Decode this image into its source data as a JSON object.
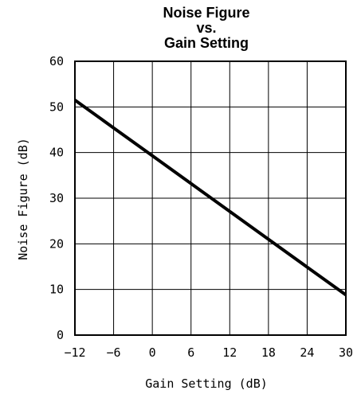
{
  "chart_data": {
    "type": "line",
    "title_lines": [
      "Noise Figure",
      "vs.",
      "Gain Setting"
    ],
    "xlabel": "Gain Setting (dB)",
    "ylabel": "Noise Figure (dB)",
    "xlim": [
      -12,
      30
    ],
    "ylim": [
      0,
      60
    ],
    "x_ticks": [
      -12,
      -6,
      0,
      6,
      12,
      18,
      24,
      30
    ],
    "x_tick_labels": [
      "−12",
      "−6",
      "0",
      "6",
      "12",
      "18",
      "24",
      "30"
    ],
    "y_ticks": [
      0,
      10,
      20,
      30,
      40,
      50,
      60
    ],
    "y_tick_labels": [
      "0",
      "10",
      "20",
      "30",
      "40",
      "50",
      "60"
    ],
    "grid": true,
    "series": [
      {
        "x": [
          -12,
          -6,
          0,
          6,
          12,
          18,
          24,
          30
        ],
        "y": [
          51.5,
          45.4,
          39.3,
          33.2,
          27.1,
          21.0,
          14.9,
          8.8
        ]
      }
    ],
    "line_color": "#000000"
  }
}
